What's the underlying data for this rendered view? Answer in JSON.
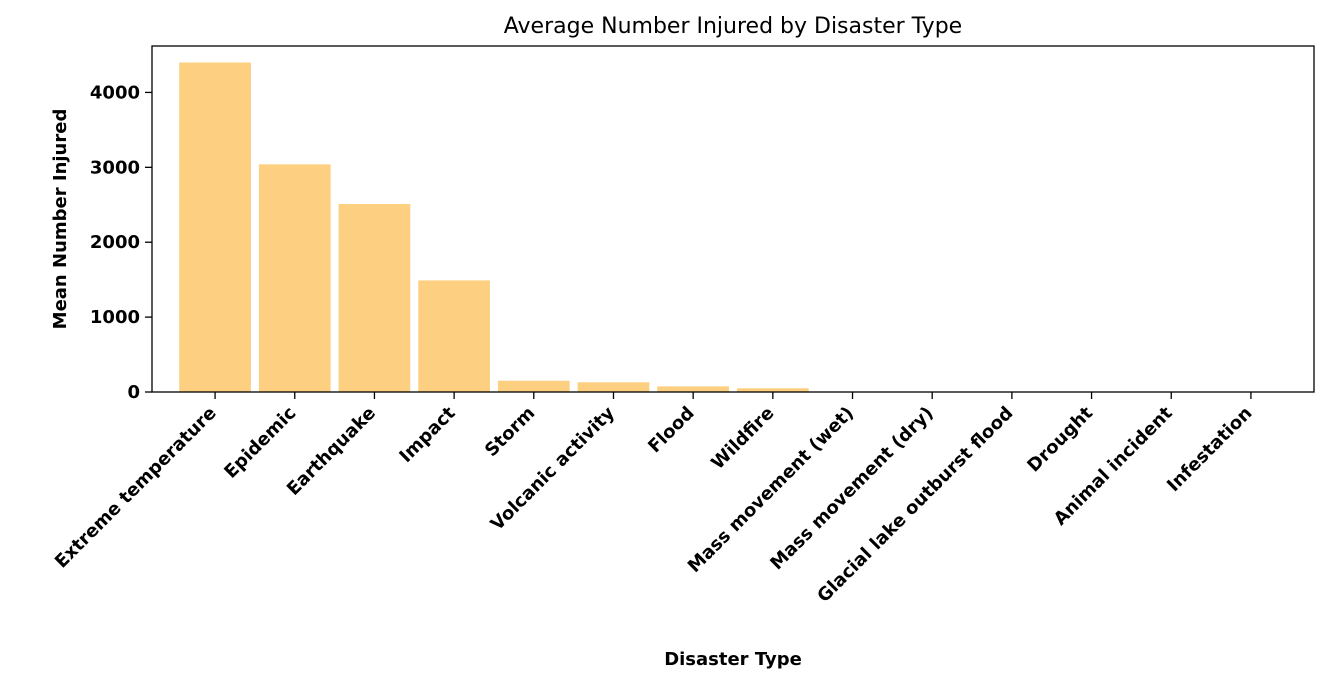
{
  "chart_data": {
    "type": "bar",
    "title": "Average Number Injured by Disaster Type",
    "xlabel": "Disaster Type",
    "ylabel": "Mean Number Injured",
    "categories": [
      "Extreme temperature",
      "Epidemic",
      "Earthquake",
      "Impact",
      "Storm",
      "Volcanic activity",
      "Flood",
      "Wildfire",
      "Mass movement (wet)",
      "Mass movement (dry)",
      "Glacial lake outburst flood",
      "Drought",
      "Animal incident",
      "Infestation"
    ],
    "values": [
      4400,
      3040,
      2510,
      1490,
      150,
      130,
      75,
      50,
      0,
      0,
      0,
      0,
      0,
      0
    ],
    "ylim": [
      0,
      4620
    ],
    "yticks": [
      0,
      1000,
      2000,
      3000,
      4000
    ],
    "grid": false,
    "bar_color": "#fdcf80"
  }
}
